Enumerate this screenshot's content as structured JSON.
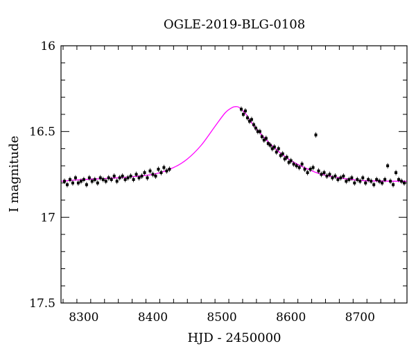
{
  "chart_data": {
    "type": "scatter",
    "title": "OGLE-2019-BLG-0108",
    "xlabel": "HJD - 2450000",
    "ylabel": "I magnitude",
    "xlim": [
      8267,
      8768
    ],
    "ylim": [
      17.5,
      16.0
    ],
    "y_inverted": true,
    "x_ticks": [
      8300,
      8400,
      8500,
      8600,
      8700
    ],
    "x_tick_labels": [
      "8300",
      "8400",
      "8500",
      "8600",
      "8700"
    ],
    "y_ticks": [
      16.0,
      16.5,
      17.0,
      17.5
    ],
    "y_tick_labels": [
      "16",
      "16.5",
      "17",
      "17.5"
    ],
    "grid": false,
    "legend": "none",
    "colors": {
      "points": "#000000",
      "model": "#ff00ff",
      "axes": "#000000"
    },
    "model": {
      "name": "",
      "shape": "single-lens microlensing curve",
      "baseline_mag": 16.79,
      "peak_time": 8520,
      "peak_mag": 16.36,
      "x": [
        8267,
        8300,
        8350,
        8400,
        8430,
        8450,
        8470,
        8490,
        8505,
        8515,
        8520,
        8525,
        8535,
        8545,
        8560,
        8580,
        8600,
        8625,
        8650,
        8700,
        8768
      ],
      "y": [
        16.79,
        16.78,
        16.77,
        16.75,
        16.71,
        16.66,
        16.58,
        16.47,
        16.39,
        16.36,
        16.355,
        16.36,
        16.4,
        16.46,
        16.53,
        16.61,
        16.67,
        16.72,
        16.755,
        16.785,
        16.79
      ]
    },
    "series": [
      {
        "x": [
          8272,
          8276,
          8280,
          8284,
          8288,
          8292,
          8296,
          8300,
          8304,
          8308,
          8312,
          8316,
          8320,
          8324,
          8328,
          8332,
          8336,
          8340,
          8344,
          8348,
          8352,
          8356,
          8360,
          8364,
          8368,
          8372,
          8376,
          8380,
          8384,
          8388,
          8392,
          8396,
          8400,
          8404,
          8408,
          8412,
          8416,
          8420,
          8424,
          8528,
          8531,
          8534,
          8537,
          8540,
          8543,
          8546,
          8549,
          8552,
          8555,
          8558,
          8561,
          8564,
          8567,
          8570,
          8573,
          8576,
          8579,
          8582,
          8585,
          8588,
          8591,
          8594,
          8597,
          8600,
          8604,
          8608,
          8612,
          8616,
          8620,
          8624,
          8628,
          8632,
          8636,
          8640,
          8644,
          8648,
          8652,
          8656,
          8660,
          8664,
          8668,
          8672,
          8676,
          8680,
          8684,
          8688,
          8692,
          8696,
          8700,
          8704,
          8708,
          8712,
          8716,
          8720,
          8724,
          8728,
          8732,
          8736,
          8740,
          8744,
          8748,
          8752,
          8756,
          8760,
          8764
        ],
        "y": [
          16.79,
          16.81,
          16.78,
          16.8,
          16.77,
          16.8,
          16.79,
          16.78,
          16.81,
          16.77,
          16.79,
          16.78,
          16.8,
          16.77,
          16.78,
          16.79,
          16.77,
          16.78,
          16.76,
          16.79,
          16.77,
          16.76,
          16.78,
          16.77,
          16.76,
          16.78,
          16.75,
          16.77,
          16.76,
          16.74,
          16.77,
          16.73,
          16.75,
          16.76,
          16.72,
          16.74,
          16.71,
          16.73,
          16.72,
          16.37,
          16.4,
          16.38,
          16.42,
          16.44,
          16.43,
          16.46,
          16.48,
          16.5,
          16.5,
          16.53,
          16.55,
          16.54,
          16.57,
          16.58,
          16.6,
          16.59,
          16.62,
          16.6,
          16.64,
          16.63,
          16.66,
          16.65,
          16.68,
          16.67,
          16.69,
          16.7,
          16.71,
          16.69,
          16.72,
          16.74,
          16.72,
          16.71,
          16.52,
          16.73,
          16.75,
          16.74,
          16.76,
          16.75,
          16.77,
          16.76,
          16.78,
          16.77,
          16.76,
          16.79,
          16.78,
          16.77,
          16.8,
          16.78,
          16.79,
          16.77,
          16.8,
          16.78,
          16.79,
          16.81,
          16.78,
          16.79,
          16.8,
          16.78,
          16.7,
          16.79,
          16.81,
          16.74,
          16.78,
          16.79,
          16.8
        ]
      }
    ]
  }
}
